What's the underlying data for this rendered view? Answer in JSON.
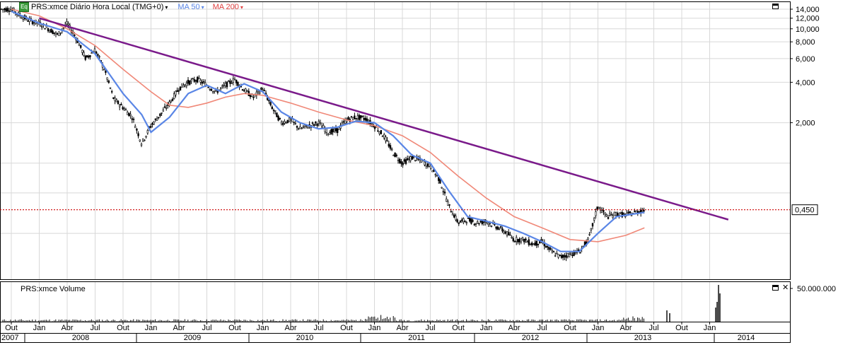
{
  "header": {
    "badge": "Eq",
    "symbol_label": "PRS:xmce Diário Hora Local (TMG+0)",
    "ma50_label": "MA 50",
    "ma200_label": "MA 200",
    "caret": "▾"
  },
  "volume_panel": {
    "title": "PRS:xmce Volume",
    "axis_label": "50.000.000",
    "close_symbol": "✕"
  },
  "price_marker": "0,450",
  "colors": {
    "ma50": "#5a86e6",
    "ma200": "#f08878",
    "trendline": "#7a1a8a",
    "price_line": "#cc0000",
    "candle": "#000000",
    "grid": "#d8d8d8"
  },
  "chart_data": {
    "type": "candlestick",
    "scale": "log",
    "y_ticks": [
      "14,000",
      "12,000",
      "10,000",
      "8,000",
      "6,000",
      "4,000",
      "2,000"
    ],
    "current_price": "0,450",
    "x_month_labels": [
      "Out",
      "Jan",
      "Abr",
      "Jul",
      "Out",
      "Jan",
      "Abr",
      "Jul",
      "Out",
      "Jan",
      "Abr",
      "Jul",
      "Out",
      "Jan",
      "Abr",
      "Jul",
      "Out",
      "Jan",
      "Abr",
      "Jul",
      "Out",
      "Jan",
      "Abr",
      "Jul",
      "Out",
      "Jan"
    ],
    "x_year_labels": [
      "2007",
      "2008",
      "2009",
      "2010",
      "2011",
      "2012",
      "2013",
      "2014"
    ],
    "series": [
      {
        "name": "MA 50"
      },
      {
        "name": "MA 200"
      }
    ],
    "price_path": [
      [
        "2007-10",
        14.0
      ],
      [
        "2007-11",
        12.5
      ],
      [
        "2007-12",
        11.5
      ],
      [
        "2008-01",
        11.0
      ],
      [
        "2008-02",
        10.0
      ],
      [
        "2008-03",
        9.0
      ],
      [
        "2008-04",
        11.0
      ],
      [
        "2008-05",
        8.5
      ],
      [
        "2008-06",
        6.0
      ],
      [
        "2008-07",
        7.0
      ],
      [
        "2008-08",
        5.0
      ],
      [
        "2008-09",
        3.0
      ],
      [
        "2008-10",
        2.6
      ],
      [
        "2008-11",
        2.2
      ],
      [
        "2008-12",
        1.4
      ],
      [
        "2009-01",
        1.9
      ],
      [
        "2009-02",
        2.3
      ],
      [
        "2009-03",
        2.8
      ],
      [
        "2009-04",
        3.6
      ],
      [
        "2009-05",
        4.0
      ],
      [
        "2009-06",
        4.2
      ],
      [
        "2009-07",
        3.8
      ],
      [
        "2009-08",
        3.4
      ],
      [
        "2009-09",
        3.8
      ],
      [
        "2009-10",
        4.2
      ],
      [
        "2009-11",
        3.5
      ],
      [
        "2009-12",
        3.1
      ],
      [
        "2010-01",
        3.6
      ],
      [
        "2010-02",
        2.6
      ],
      [
        "2010-03",
        2.0
      ],
      [
        "2010-04",
        2.1
      ],
      [
        "2010-05",
        1.8
      ],
      [
        "2010-06",
        1.9
      ],
      [
        "2010-07",
        2.0
      ],
      [
        "2010-08",
        1.7
      ],
      [
        "2010-09",
        1.75
      ],
      [
        "2010-10",
        2.1
      ],
      [
        "2010-11",
        2.2
      ],
      [
        "2010-12",
        2.15
      ],
      [
        "2011-01",
        1.9
      ],
      [
        "2011-02",
        1.6
      ],
      [
        "2011-03",
        1.2
      ],
      [
        "2011-04",
        1.0
      ],
      [
        "2011-05",
        1.1
      ],
      [
        "2011-06",
        1.05
      ],
      [
        "2011-07",
        0.95
      ],
      [
        "2011-08",
        0.75
      ],
      [
        "2011-09",
        0.48
      ],
      [
        "2011-10",
        0.36
      ],
      [
        "2011-11",
        0.38
      ],
      [
        "2011-12",
        0.36
      ],
      [
        "2012-01",
        0.37
      ],
      [
        "2012-02",
        0.34
      ],
      [
        "2012-03",
        0.31
      ],
      [
        "2012-04",
        0.27
      ],
      [
        "2012-05",
        0.27
      ],
      [
        "2012-06",
        0.25
      ],
      [
        "2012-07",
        0.26
      ],
      [
        "2012-08",
        0.22
      ],
      [
        "2012-09",
        0.2
      ],
      [
        "2012-10",
        0.21
      ],
      [
        "2012-11",
        0.22
      ],
      [
        "2012-12",
        0.27
      ],
      [
        "2013-01",
        0.48
      ],
      [
        "2013-02",
        0.4
      ],
      [
        "2013-03",
        0.42
      ],
      [
        "2013-04",
        0.41
      ],
      [
        "2013-05",
        0.43
      ],
      [
        "2013-06",
        0.45
      ]
    ],
    "ma50_path": [
      [
        "2007-10",
        13.5
      ],
      [
        "2008-01",
        11.0
      ],
      [
        "2008-04",
        9.5
      ],
      [
        "2008-07",
        6.5
      ],
      [
        "2008-10",
        3.3
      ],
      [
        "2008-12",
        2.3
      ],
      [
        "2009-01",
        1.7
      ],
      [
        "2009-03",
        2.2
      ],
      [
        "2009-05",
        3.3
      ],
      [
        "2009-07",
        3.8
      ],
      [
        "2009-09",
        3.3
      ],
      [
        "2009-11",
        3.9
      ],
      [
        "2010-01",
        3.4
      ],
      [
        "2010-03",
        2.4
      ],
      [
        "2010-05",
        2.0
      ],
      [
        "2010-07",
        1.8
      ],
      [
        "2010-09",
        1.85
      ],
      [
        "2010-11",
        2.05
      ],
      [
        "2011-01",
        2.0
      ],
      [
        "2011-03",
        1.6
      ],
      [
        "2011-05",
        1.15
      ],
      [
        "2011-07",
        1.0
      ],
      [
        "2011-09",
        0.62
      ],
      [
        "2011-11",
        0.4
      ],
      [
        "2012-01",
        0.37
      ],
      [
        "2012-03",
        0.34
      ],
      [
        "2012-05",
        0.3
      ],
      [
        "2012-07",
        0.26
      ],
      [
        "2012-09",
        0.22
      ],
      [
        "2012-11",
        0.22
      ],
      [
        "2013-01",
        0.3
      ],
      [
        "2013-03",
        0.4
      ],
      [
        "2013-05",
        0.42
      ],
      [
        "2013-06",
        0.43
      ]
    ],
    "ma200_path": [
      [
        "2007-10",
        14.0
      ],
      [
        "2008-01",
        12.5
      ],
      [
        "2008-04",
        10.0
      ],
      [
        "2008-07",
        7.5
      ],
      [
        "2008-10",
        5.0
      ],
      [
        "2009-01",
        3.4
      ],
      [
        "2009-03",
        2.7
      ],
      [
        "2009-05",
        2.6
      ],
      [
        "2009-07",
        2.8
      ],
      [
        "2009-09",
        3.1
      ],
      [
        "2009-11",
        3.3
      ],
      [
        "2010-01",
        3.2
      ],
      [
        "2010-04",
        2.8
      ],
      [
        "2010-07",
        2.4
      ],
      [
        "2010-10",
        2.1
      ],
      [
        "2011-01",
        1.9
      ],
      [
        "2011-04",
        1.6
      ],
      [
        "2011-07",
        1.2
      ],
      [
        "2011-10",
        0.8
      ],
      [
        "2012-01",
        0.55
      ],
      [
        "2012-04",
        0.4
      ],
      [
        "2012-07",
        0.33
      ],
      [
        "2012-10",
        0.27
      ],
      [
        "2013-01",
        0.26
      ],
      [
        "2013-04",
        0.29
      ],
      [
        "2013-06",
        0.33
      ]
    ],
    "trendline": [
      [
        "2008-01",
        12.0
      ],
      [
        "2014-03",
        0.38
      ]
    ]
  }
}
